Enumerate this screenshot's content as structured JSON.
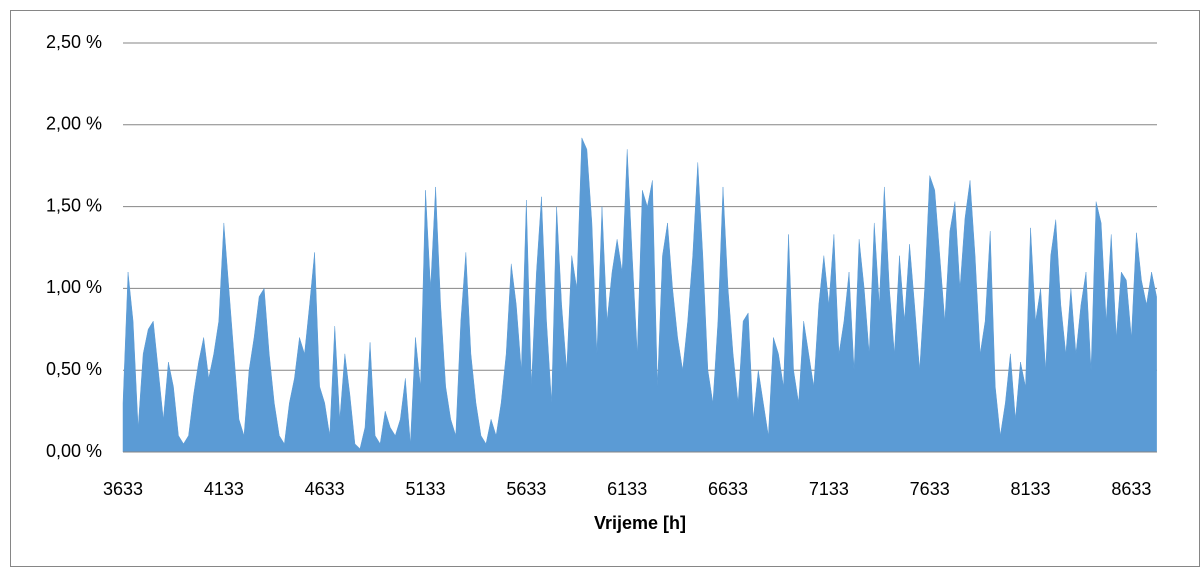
{
  "chart_data": {
    "type": "area",
    "x_label": "Vrijeme [h]",
    "color": "#5b9bd5",
    "grid": true,
    "xlim": [
      3633,
      8760
    ],
    "xticks": [
      3633,
      4133,
      4633,
      5133,
      5633,
      6133,
      6633,
      7133,
      7633,
      8133,
      8633
    ],
    "ylim": [
      0,
      2.5
    ],
    "yticks": [
      {
        "value": 0,
        "label": "0,00 %"
      },
      {
        "value": 0.5,
        "label": "0,50 %"
      },
      {
        "value": 1,
        "label": "1,00 %"
      },
      {
        "value": 1.5,
        "label": "1,50 %"
      },
      {
        "value": 2,
        "label": "2,00 %"
      },
      {
        "value": 2.5,
        "label": "2,50 %"
      }
    ],
    "x": [
      3633,
      3658,
      3683,
      3708,
      3733,
      3758,
      3783,
      3808,
      3833,
      3858,
      3883,
      3908,
      3933,
      3958,
      3983,
      4008,
      4033,
      4058,
      4083,
      4108,
      4133,
      4158,
      4183,
      4208,
      4233,
      4258,
      4283,
      4308,
      4333,
      4358,
      4383,
      4408,
      4433,
      4458,
      4483,
      4508,
      4533,
      4558,
      4583,
      4608,
      4633,
      4658,
      4683,
      4708,
      4733,
      4758,
      4783,
      4808,
      4833,
      4858,
      4883,
      4908,
      4933,
      4958,
      4983,
      5008,
      5033,
      5058,
      5083,
      5108,
      5133,
      5158,
      5183,
      5208,
      5233,
      5258,
      5283,
      5308,
      5333,
      5358,
      5383,
      5408,
      5433,
      5458,
      5483,
      5508,
      5533,
      5558,
      5583,
      5608,
      5633,
      5658,
      5683,
      5708,
      5733,
      5758,
      5783,
      5808,
      5833,
      5858,
      5883,
      5908,
      5933,
      5958,
      5983,
      6008,
      6033,
      6058,
      6083,
      6108,
      6133,
      6158,
      6183,
      6208,
      6233,
      6258,
      6283,
      6308,
      6333,
      6358,
      6383,
      6408,
      6433,
      6458,
      6483,
      6508,
      6533,
      6558,
      6583,
      6608,
      6633,
      6658,
      6683,
      6708,
      6733,
      6758,
      6783,
      6808,
      6833,
      6858,
      6883,
      6908,
      6933,
      6958,
      6983,
      7008,
      7033,
      7058,
      7083,
      7108,
      7133,
      7158,
      7183,
      7208,
      7233,
      7258,
      7283,
      7308,
      7333,
      7358,
      7383,
      7408,
      7433,
      7458,
      7483,
      7508,
      7533,
      7558,
      7583,
      7608,
      7633,
      7658,
      7683,
      7708,
      7733,
      7758,
      7783,
      7808,
      7833,
      7858,
      7883,
      7908,
      7933,
      7958,
      7983,
      8008,
      8033,
      8058,
      8083,
      8108,
      8133,
      8158,
      8183,
      8208,
      8233,
      8258,
      8283,
      8308,
      8333,
      8358,
      8383,
      8408,
      8433,
      8458,
      8483,
      8508,
      8533,
      8558,
      8583,
      8608,
      8633,
      8658,
      8683,
      8708,
      8733,
      8758
    ],
    "values": [
      0.3,
      1.1,
      0.8,
      0.15,
      0.6,
      0.75,
      0.8,
      0.5,
      0.2,
      0.55,
      0.4,
      0.1,
      0.05,
      0.1,
      0.35,
      0.55,
      0.7,
      0.45,
      0.6,
      0.8,
      1.4,
      1.0,
      0.6,
      0.2,
      0.1,
      0.5,
      0.7,
      0.95,
      1.0,
      0.6,
      0.3,
      0.1,
      0.05,
      0.3,
      0.45,
      0.7,
      0.6,
      0.9,
      1.22,
      0.4,
      0.3,
      0.1,
      0.77,
      0.2,
      0.6,
      0.35,
      0.05,
      0.02,
      0.15,
      0.67,
      0.1,
      0.05,
      0.25,
      0.15,
      0.1,
      0.2,
      0.45,
      0.05,
      0.7,
      0.4,
      1.6,
      1.0,
      1.62,
      0.9,
      0.4,
      0.2,
      0.1,
      0.8,
      1.22,
      0.6,
      0.3,
      0.1,
      0.05,
      0.2,
      0.1,
      0.3,
      0.6,
      1.15,
      0.9,
      0.5,
      1.54,
      0.4,
      1.1,
      1.56,
      0.8,
      0.3,
      1.5,
      0.9,
      0.5,
      1.2,
      1.0,
      1.92,
      1.85,
      1.4,
      0.6,
      1.5,
      0.8,
      1.1,
      1.3,
      1.1,
      1.85,
      1.2,
      0.6,
      1.6,
      1.5,
      1.66,
      0.4,
      1.2,
      1.4,
      1.0,
      0.7,
      0.5,
      0.8,
      1.2,
      1.77,
      1.2,
      0.5,
      0.3,
      0.8,
      1.62,
      1.0,
      0.6,
      0.3,
      0.8,
      0.85,
      0.2,
      0.5,
      0.3,
      0.1,
      0.7,
      0.6,
      0.4,
      1.33,
      0.5,
      0.3,
      0.8,
      0.6,
      0.4,
      0.9,
      1.2,
      0.9,
      1.33,
      0.6,
      0.8,
      1.1,
      0.5,
      1.3,
      1.0,
      0.6,
      1.4,
      0.9,
      1.62,
      1.0,
      0.6,
      1.2,
      0.8,
      1.27,
      0.9,
      0.5,
      1.0,
      1.69,
      1.6,
      1.2,
      0.8,
      1.35,
      1.53,
      1.0,
      1.43,
      1.66,
      1.2,
      0.6,
      0.8,
      1.35,
      0.4,
      0.1,
      0.3,
      0.6,
      0.2,
      0.55,
      0.4,
      1.37,
      0.8,
      1.0,
      0.5,
      1.2,
      1.42,
      0.9,
      0.6,
      1.0,
      0.6,
      0.9,
      1.1,
      0.5,
      1.53,
      1.4,
      0.8,
      1.33,
      0.7,
      1.1,
      1.05,
      0.7,
      1.34,
      1.05,
      0.9,
      1.1,
      0.95
    ]
  }
}
